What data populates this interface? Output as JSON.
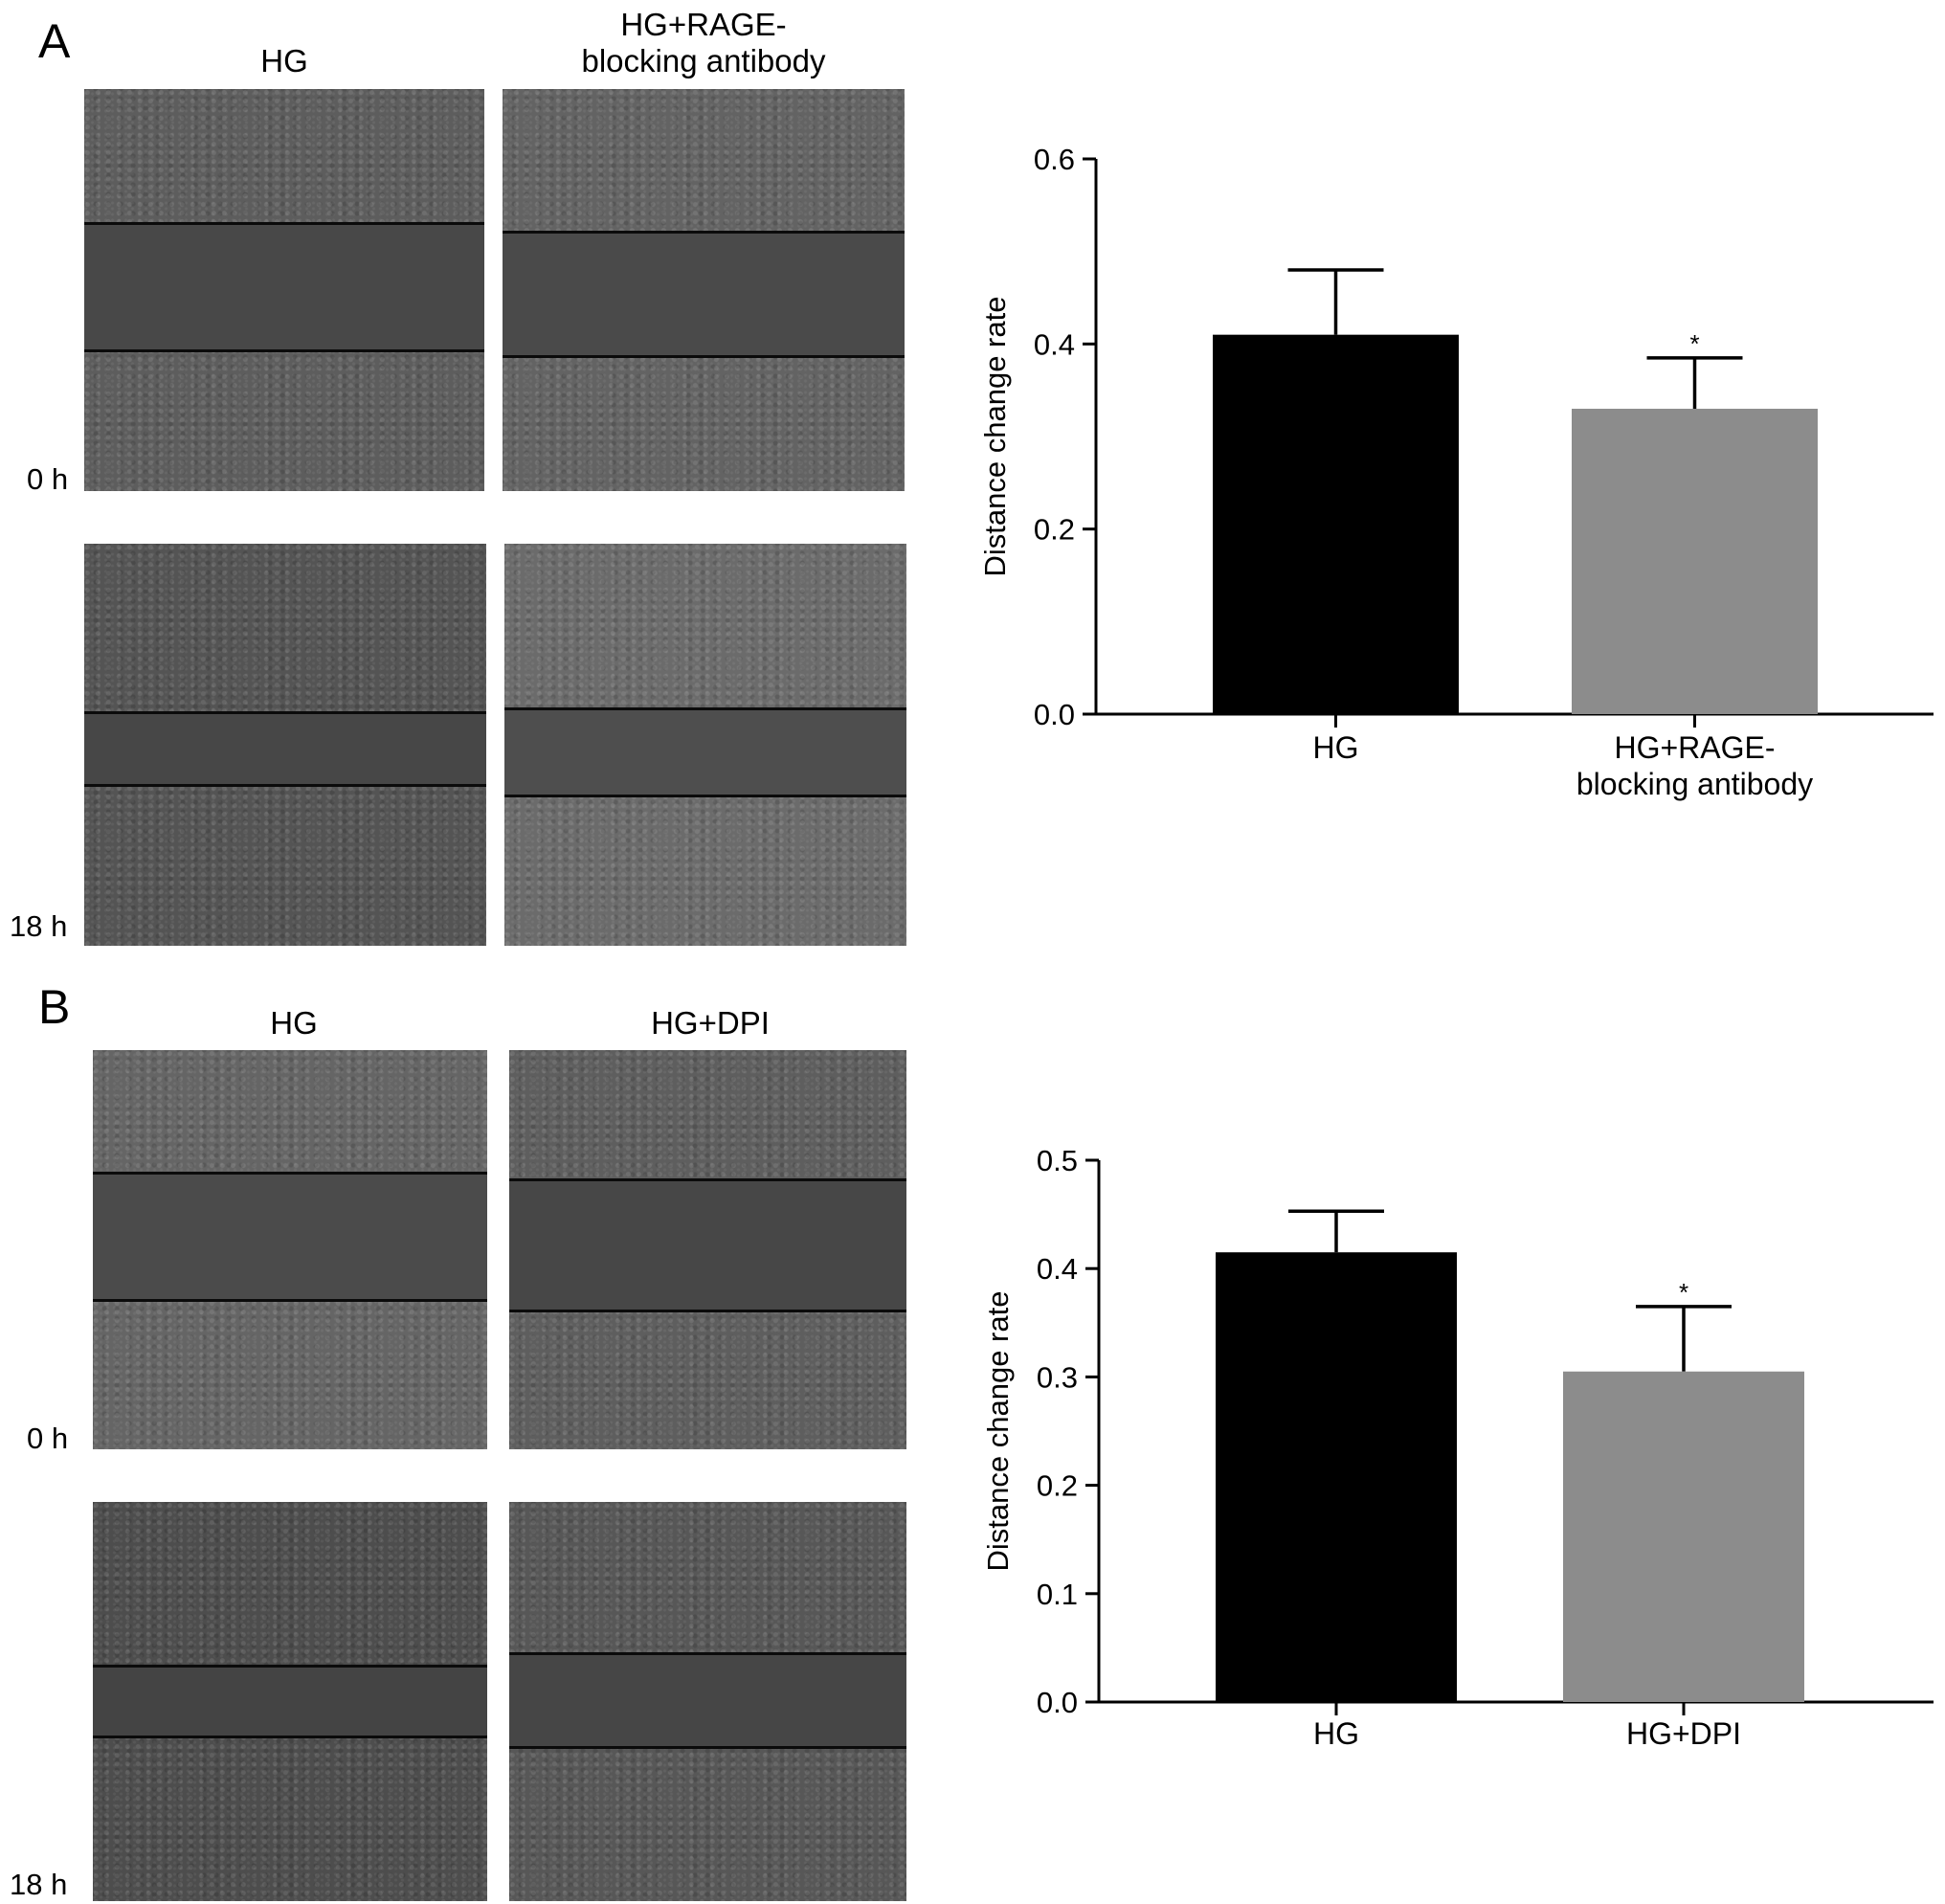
{
  "panels": [
    {
      "letter": "A",
      "columns": [
        {
          "header_lines": [
            "HG"
          ]
        },
        {
          "header_lines": [
            "HG+RAGE-",
            "blocking antibody"
          ]
        }
      ],
      "time_labels": [
        "0 h",
        "18 h"
      ],
      "micrographs": [
        {
          "name": "micrograph-a-hg-0h",
          "base": "#5d5d5d",
          "gap": "#484848"
        },
        {
          "name": "micrograph-a-rage-0h",
          "base": "#636363",
          "gap": "#4a4a4a"
        },
        {
          "name": "micrograph-a-hg-18h",
          "base": "#545454",
          "gap": "#474747"
        },
        {
          "name": "micrograph-a-rage-18h",
          "base": "#6b6b6b",
          "gap": "#4e4e4e"
        }
      ]
    },
    {
      "letter": "B",
      "columns": [
        {
          "header_lines": [
            "HG"
          ]
        },
        {
          "header_lines": [
            "HG+DPI"
          ]
        }
      ],
      "time_labels": [
        "0 h",
        "18 h"
      ],
      "micrographs": [
        {
          "name": "micrograph-b-hg-0h",
          "base": "#656565",
          "gap": "#4b4b4b"
        },
        {
          "name": "micrograph-b-dpi-0h",
          "base": "#5e5e5e",
          "gap": "#474747"
        },
        {
          "name": "micrograph-b-hg-18h",
          "base": "#4d4d4d",
          "gap": "#444444"
        },
        {
          "name": "micrograph-b-dpi-18h",
          "base": "#575757",
          "gap": "#464646"
        }
      ]
    }
  ],
  "chart_data": [
    {
      "type": "bar",
      "ylabel": "Distance change rate",
      "ylim": [
        0,
        0.6
      ],
      "yticks": [
        "0.0",
        "0.2",
        "0.4",
        "0.6"
      ],
      "categories": [
        [
          "HG"
        ],
        [
          "HG+RAGE-",
          "blocking antibody"
        ]
      ],
      "values": [
        0.41,
        0.33
      ],
      "error": [
        0.07,
        0.055
      ],
      "significance": [
        "",
        "*"
      ],
      "colors": [
        "#000000",
        "#8c8c8c"
      ],
      "grid": false,
      "legend": false
    },
    {
      "type": "bar",
      "ylabel": "Distance change rate",
      "ylim": [
        0,
        0.5
      ],
      "yticks": [
        "0.0",
        "0.1",
        "0.2",
        "0.3",
        "0.4",
        "0.5"
      ],
      "categories": [
        [
          "HG"
        ],
        [
          "HG+DPI"
        ]
      ],
      "values": [
        0.415,
        0.305
      ],
      "error": [
        0.038,
        0.06
      ],
      "significance": [
        "",
        "*"
      ],
      "colors": [
        "#000000",
        "#8c8c8c"
      ],
      "grid": false,
      "legend": false
    }
  ]
}
